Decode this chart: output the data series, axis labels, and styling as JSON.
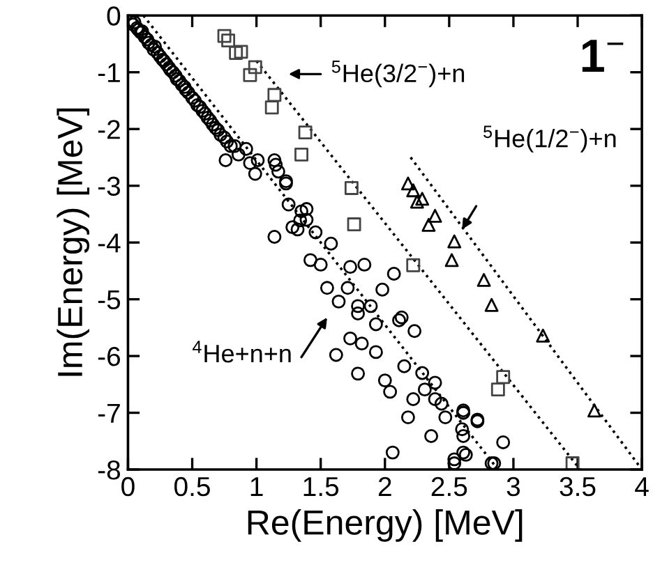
{
  "chart_data": {
    "type": "scatter",
    "xlabel": "Re(Energy) [MeV]",
    "ylabel": "Im(Energy) [MeV]",
    "xlim": [
      0,
      4
    ],
    "ylim": [
      -8,
      0
    ],
    "xticks": [
      0,
      0.5,
      1,
      1.5,
      2,
      2.5,
      3,
      3.5,
      4
    ],
    "yticks": [
      -8,
      -7,
      -6,
      -5,
      -4,
      -3,
      -2,
      -1,
      0
    ],
    "grid": false,
    "series": [
      {
        "type": "line",
        "color": "#000000",
        "line_style": "dotted",
        "marker": "none",
        "x": [
          0.12,
          2.88
        ],
        "values": [
          0,
          -8
        ]
      },
      {
        "type": "line",
        "color": "#000000",
        "line_style": "dotted",
        "marker": "none",
        "x": [
          1.0,
          3.52
        ],
        "values": [
          -0.8,
          -8
        ]
      },
      {
        "type": "line",
        "color": "#000000",
        "line_style": "dotted",
        "marker": "none",
        "x": [
          2.2,
          4.0
        ],
        "values": [
          -2.5,
          -8
        ]
      },
      {
        "color": "#000000",
        "marker": "circle",
        "x": [
          0.02,
          0.04,
          0.05,
          0.07,
          0.08,
          0.1,
          0.11,
          0.13,
          0.15,
          0.16,
          0.18,
          0.2,
          0.21,
          0.23,
          0.25,
          0.27,
          0.28,
          0.3,
          0.32,
          0.33,
          0.35,
          0.37,
          0.38,
          0.4,
          0.42,
          0.44,
          0.45,
          0.47,
          0.5,
          0.52,
          0.54,
          0.56,
          0.58,
          0.6,
          0.62,
          0.64,
          0.66,
          0.68,
          0.7,
          0.72,
          0.75,
          0.77,
          0.8,
          0.83,
          0.76,
          0.92,
          0.86,
          0.95,
          0.99,
          1.01,
          1.14,
          1.17,
          1.15,
          1.23,
          1.23,
          1.14,
          1.32,
          1.39,
          1.35,
          1.39,
          1.28,
          1.46,
          1.25,
          1.34,
          1.42,
          1.5,
          1.58,
          1.55,
          1.73,
          1.84,
          1.98,
          2.07,
          1.71,
          1.64,
          1.79,
          1.89,
          2.11,
          2.13,
          1.93,
          1.79,
          1.73,
          1.82,
          2.23,
          1.93,
          1.62,
          1.79,
          2.0,
          2.04,
          2.15,
          2.29,
          2.31,
          2.39,
          2.22,
          2.39,
          2.44,
          2.47,
          2.61,
          2.61,
          2.72,
          2.6,
          2.18,
          2.36,
          2.61,
          2.54,
          2.63,
          2.06,
          2.83,
          2.92,
          2.85,
          2.54,
          2.61,
          2.72,
          2.61
        ],
        "values": [
          -0.1,
          -0.16,
          -0.12,
          -0.22,
          -0.25,
          -0.3,
          -0.28,
          -0.38,
          -0.42,
          -0.48,
          -0.52,
          -0.6,
          -0.55,
          -0.66,
          -0.72,
          -0.78,
          -0.8,
          -0.86,
          -0.92,
          -0.96,
          -1.0,
          -1.06,
          -1.12,
          -1.15,
          -1.22,
          -1.26,
          -1.31,
          -1.36,
          -1.45,
          -1.5,
          -1.58,
          -1.61,
          -1.68,
          -1.73,
          -1.8,
          -1.85,
          -1.92,
          -1.98,
          -2.02,
          -2.1,
          -2.15,
          -2.22,
          -2.3,
          -2.3,
          -2.55,
          -2.35,
          -2.45,
          -2.6,
          -2.79,
          -2.55,
          -2.55,
          -2.75,
          -2.63,
          -2.92,
          -2.96,
          -3.9,
          -3.77,
          -3.41,
          -3.45,
          -3.6,
          -3.73,
          -3.82,
          -3.33,
          -3.61,
          -4.31,
          -4.39,
          -4.02,
          -4.8,
          -4.43,
          -4.39,
          -4.83,
          -4.55,
          -4.8,
          -5.04,
          -5.12,
          -5.12,
          -5.37,
          -5.32,
          -5.44,
          -5.25,
          -5.69,
          -5.78,
          -5.56,
          -5.93,
          -5.98,
          -6.31,
          -6.43,
          -6.63,
          -6.18,
          -6.3,
          -6.59,
          -6.47,
          -6.76,
          -6.76,
          -6.84,
          -7.08,
          -6.96,
          -7.41,
          -7.12,
          -7.29,
          -7.08,
          -7.41,
          -7.7,
          -7.82,
          -7.74,
          -7.7,
          -7.89,
          -7.52,
          -7.89,
          -7.89,
          -7.0,
          -7.15,
          -7.0
        ]
      },
      {
        "color": "#444444",
        "marker": "square",
        "x": [
          0.75,
          0.78,
          0.84,
          0.88,
          0.99,
          0.95,
          1.14,
          1.12,
          1.38,
          1.35,
          1.74,
          1.76,
          2.22,
          2.92,
          2.88,
          3.46
        ],
        "values": [
          -0.36,
          -0.44,
          -0.66,
          -0.64,
          -0.91,
          -1.05,
          -1.4,
          -1.62,
          -2.06,
          -2.45,
          -3.04,
          -3.68,
          -4.4,
          -6.37,
          -6.59,
          -7.89
        ]
      },
      {
        "color": "#000000",
        "marker": "triangle",
        "x": [
          2.18,
          2.22,
          2.25,
          2.29,
          2.39,
          2.34,
          2.54,
          2.52,
          2.77,
          2.83,
          3.23,
          3.63
        ],
        "values": [
          -2.96,
          -3.08,
          -3.28,
          -3.23,
          -3.53,
          -3.69,
          -3.98,
          -4.31,
          -4.66,
          -5.1,
          -5.64,
          -6.96
        ]
      }
    ],
    "annotations": [
      "$^{5}$He(3/2$^{−}$)+n",
      "$^{5}$He(1/2$^{−}$)+n",
      "$^{4}$He+n+n",
      "1$^{−}$"
    ]
  }
}
